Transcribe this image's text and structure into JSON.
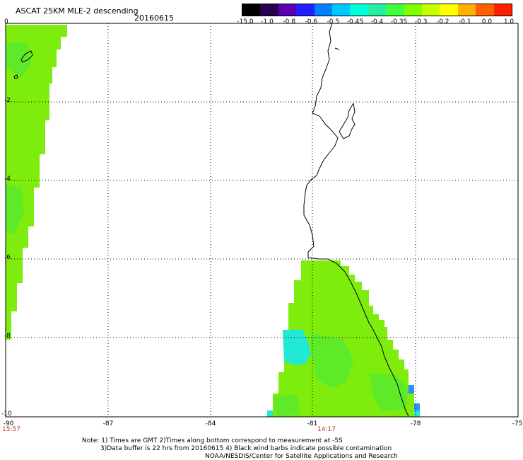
{
  "header": {
    "title": "ASCAT 25KM MLE-2 descending",
    "date": "20160615"
  },
  "colorbar": {
    "labels": [
      "-15.0",
      "-1.0",
      "-0.8",
      "-0.6",
      "-0.5",
      "-0.45",
      "-0.4",
      "-0.35",
      "-0.3",
      "-0.2",
      "-0.1",
      "0.0",
      "1.0"
    ],
    "colors": [
      "#000000",
      "#2a0050",
      "#5a00b0",
      "#2020ff",
      "#0080ff",
      "#00c8ff",
      "#00ffd8",
      "#20f0a0",
      "#40ff40",
      "#80ff00",
      "#c8ff00",
      "#ffff00",
      "#ffb000",
      "#ff6000",
      "#ff2000"
    ]
  },
  "axes": {
    "x_ticks": [
      "-90",
      "-87",
      "-84",
      "-81",
      "-78",
      "-75"
    ],
    "y_ticks": [
      "0",
      "-2",
      "-4",
      "-6",
      "-8",
      "-10"
    ]
  },
  "times": {
    "left": "15:57",
    "center": "14:17"
  },
  "notes": {
    "line1": "Note: 1) Times are GMT 2)Times along bottom correspond to measurement at -5S",
    "line2": "3)Data buffer is 22 hrs from 20160615 4) Black wind barbs indicate possible contamination",
    "line3": "NOAA/NESDIS/Center for Satellite Applications and Research"
  },
  "colors": {
    "swath_main": "#7eec0c",
    "swath_alt": "#5eea28",
    "swath_cyan": "#22e8d6",
    "swath_blue": "#2a90ff",
    "grid": "#000000",
    "coast": "#000000",
    "time_text": "#c0392b"
  }
}
